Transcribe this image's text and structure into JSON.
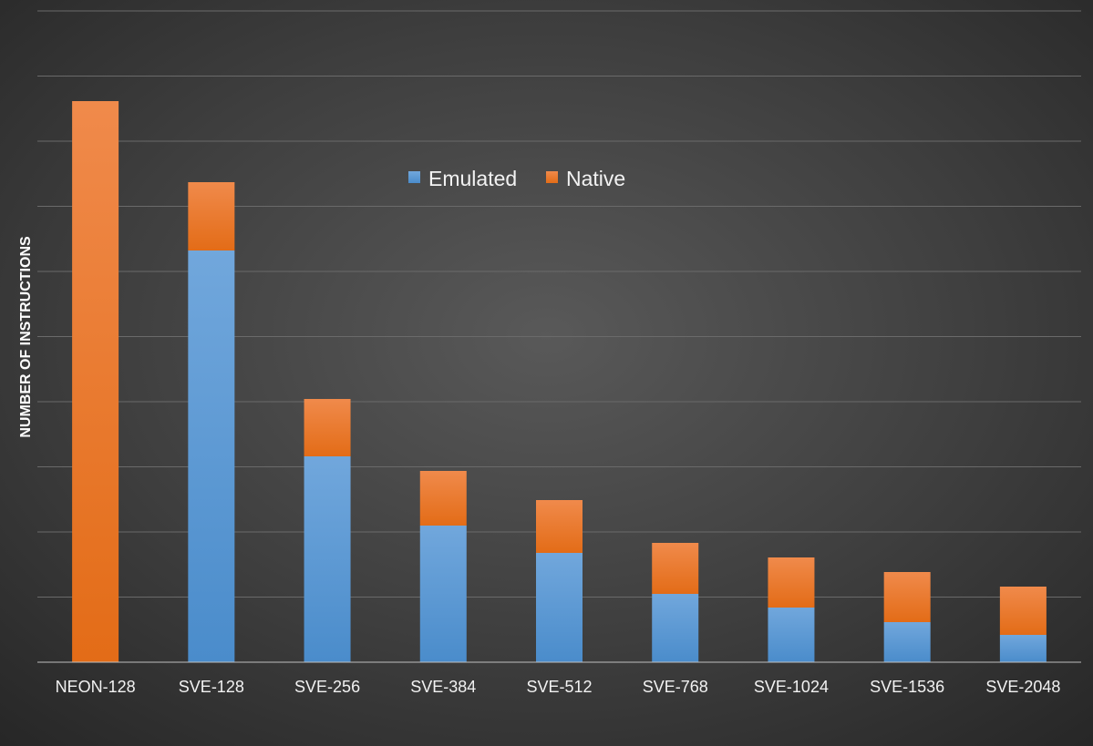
{
  "chart_data": {
    "type": "bar",
    "stacked": true,
    "ylabel": "NUMBER OF INSTRUCTIONS",
    "xlabel": "",
    "categories": [
      "NEON-128",
      "SVE-128",
      "SVE-256",
      "SVE-384",
      "SVE-512",
      "SVE-768",
      "SVE-1024",
      "SVE-1536",
      "SVE-2048"
    ],
    "series": [
      {
        "name": "Emulated",
        "color": "#5b9bd5",
        "values": [
          0,
          452,
          226,
          150,
          120,
          75,
          60,
          44,
          30
        ]
      },
      {
        "name": "Native",
        "color": "#ed7d31",
        "values": [
          616,
          75,
          63,
          60,
          58,
          56,
          55,
          55,
          53
        ]
      }
    ],
    "ylim": [
      0,
      715
    ],
    "grid": true,
    "gridlines": [
      0,
      71.5,
      143,
      214.5,
      286,
      357.5,
      429,
      500.5,
      572,
      643.5,
      715
    ],
    "legend": "top-center"
  }
}
